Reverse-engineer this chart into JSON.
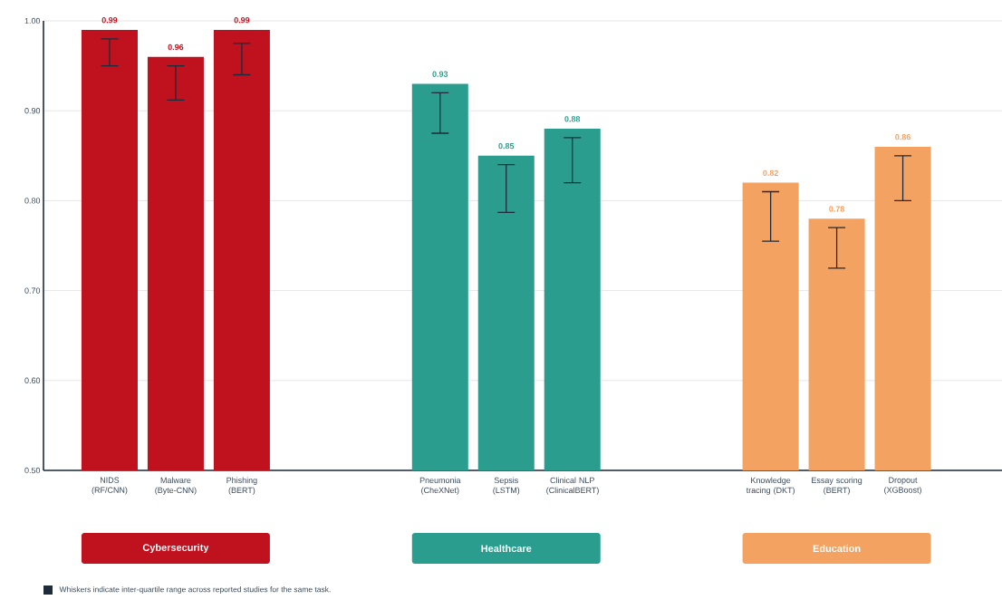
{
  "chart_data": {
    "type": "bar",
    "categories": [
      "NIDS (RF/CNN)",
      "Malware (Byte-CNN)",
      "Phishing (BERT)",
      null,
      null,
      "Pneumonia (CheXNet)",
      "Sepsis (LSTM)",
      "Clinical NLP (ClinicalBERT)",
      null,
      null,
      "Knowledge tracing (DKT)",
      "Essay scoring (BERT)",
      "Dropout (XGBoost)"
    ],
    "series": [
      {
        "name": "Cybersecurity",
        "color": "#c0111f",
        "values": [
          0.99,
          0.96,
          0.99,
          null,
          null,
          null,
          null,
          null,
          null,
          null,
          null,
          null,
          null
        ],
        "errors": [
          [
            0.95,
            0.98
          ],
          [
            0.912,
            0.95
          ],
          [
            0.94,
            0.975
          ],
          null,
          null,
          null,
          null,
          null,
          null,
          null,
          null,
          null,
          null
        ]
      },
      {
        "name": "Healthcare",
        "color": "#2a9d8f",
        "values": [
          null,
          null,
          null,
          null,
          null,
          0.93,
          0.85,
          0.88,
          null,
          null,
          null,
          null,
          null
        ],
        "errors": [
          null,
          null,
          null,
          null,
          null,
          [
            0.875,
            0.92
          ],
          [
            0.787,
            0.84
          ],
          [
            0.82,
            0.87
          ],
          null,
          null,
          null,
          null,
          null
        ]
      },
      {
        "name": "Education",
        "color": "#f4a261",
        "values": [
          null,
          null,
          null,
          null,
          null,
          null,
          null,
          null,
          null,
          null,
          0.82,
          0.78,
          0.86
        ],
        "errors": [
          null,
          null,
          null,
          null,
          null,
          null,
          null,
          null,
          null,
          null,
          [
            0.755,
            0.81
          ],
          [
            0.725,
            0.77
          ],
          [
            0.8,
            0.85
          ]
        ]
      }
    ],
    "ylim": [
      0.5,
      1.0
    ],
    "yticks": [
      {
        "value": 0.5,
        "label": "0.50"
      },
      {
        "value": 0.6,
        "label": "0.60"
      },
      {
        "value": 0.7,
        "label": "0.70"
      },
      {
        "value": 0.8,
        "label": "0.80"
      },
      {
        "value": 0.9,
        "label": "0.90"
      },
      {
        "value": 1.0,
        "label": "1.00"
      }
    ],
    "grid": "y",
    "data_labels": true,
    "annotations": [
      "Whiskers indicate inter-quartile range across reported studies for the same task."
    ]
  }
}
